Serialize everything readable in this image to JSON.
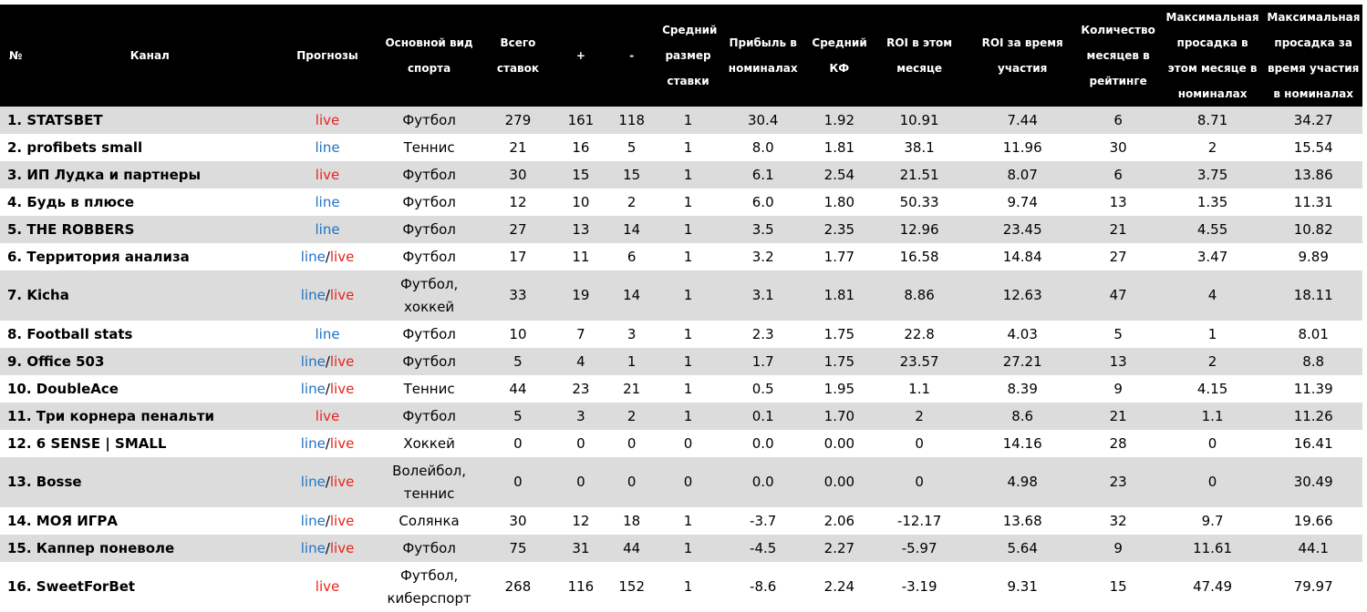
{
  "colors": {
    "header_bg": "#000000",
    "header_text": "#ffffff",
    "row_odd": "#dcdcdc",
    "row_even": "#ffffff",
    "live": "#e8231b",
    "line": "#1f72c4",
    "profit_pos": "#1e8a22",
    "profit_neg": "#e8231b"
  },
  "headers": {
    "num": "№",
    "channel": "Канал",
    "forecasts": "Прогнозы",
    "sport": "Основной вид спорта",
    "total": "Всего ставок",
    "plus": "+",
    "minus": "-",
    "avg_stake": "Средний размер ставки",
    "profit": "Прибыль в номиналах",
    "avg_kf": "Средний КФ",
    "roi_month": "ROI в этом месяце",
    "roi_all": "ROI за время участия",
    "months": "Количество месяцев в рейтинге",
    "dd_month": "Максимальная просадка в этом месяце в номиналах",
    "dd_all": "Максимальная просадка за время участия в номиналах"
  },
  "rows": [
    {
      "name": "1.  STATSBET",
      "forecast": "live",
      "sport": "Футбол",
      "total": "279",
      "plus": "161",
      "minus": "118",
      "stake": "1",
      "profit": "30.4",
      "kf": "1.92",
      "roi_m": "10.91",
      "roi_a": "7.44",
      "months": "6",
      "dd_m": "8.71",
      "dd_a": "34.27"
    },
    {
      "name": "2.  profibets small",
      "forecast": "line",
      "sport": "Теннис",
      "total": "21",
      "plus": "16",
      "minus": "5",
      "stake": "1",
      "profit": "8.0",
      "kf": "1.81",
      "roi_m": "38.1",
      "roi_a": "11.96",
      "months": "30",
      "dd_m": "2",
      "dd_a": "15.54"
    },
    {
      "name": "3.  ИП Лудка и партнеры",
      "forecast": "live",
      "sport": "Футбол",
      "total": "30",
      "plus": "15",
      "minus": "15",
      "stake": "1",
      "profit": "6.1",
      "kf": "2.54",
      "roi_m": "21.51",
      "roi_a": "8.07",
      "months": "6",
      "dd_m": "3.75",
      "dd_a": "13.86"
    },
    {
      "name": "4.  Будь в плюсе",
      "forecast": "line",
      "sport": "Футбол",
      "total": "12",
      "plus": "10",
      "minus": "2",
      "stake": "1",
      "profit": "6.0",
      "kf": "1.80",
      "roi_m": "50.33",
      "roi_a": "9.74",
      "months": "13",
      "dd_m": "1.35",
      "dd_a": "11.31"
    },
    {
      "name": "5.  THE ROBBERS",
      "forecast": "line",
      "sport": "Футбол",
      "total": "27",
      "plus": "13",
      "minus": "14",
      "stake": "1",
      "profit": "3.5",
      "kf": "2.35",
      "roi_m": "12.96",
      "roi_a": "23.45",
      "months": "21",
      "dd_m": "4.55",
      "dd_a": "10.82"
    },
    {
      "name": "6.  Территория анализа",
      "forecast": "line/live",
      "sport": "Футбол",
      "total": "17",
      "plus": "11",
      "minus": "6",
      "stake": "1",
      "profit": "3.2",
      "kf": "1.77",
      "roi_m": "16.58",
      "roi_a": "14.84",
      "months": "27",
      "dd_m": "3.47",
      "dd_a": "9.89"
    },
    {
      "name": "7.  Kicha",
      "forecast": "line/live",
      "sport": "Футбол, хоккей",
      "total": "33",
      "plus": "19",
      "minus": "14",
      "stake": "1",
      "profit": "3.1",
      "kf": "1.81",
      "roi_m": "8.86",
      "roi_a": "12.63",
      "months": "47",
      "dd_m": "4",
      "dd_a": "18.11",
      "tall": true
    },
    {
      "name": "8.  Football stats",
      "forecast": "line",
      "sport": "Футбол",
      "total": "10",
      "plus": "7",
      "minus": "3",
      "stake": "1",
      "profit": "2.3",
      "kf": "1.75",
      "roi_m": "22.8",
      "roi_a": "4.03",
      "months": "5",
      "dd_m": "1",
      "dd_a": "8.01"
    },
    {
      "name": "9.  Office 503",
      "forecast": "line/live",
      "sport": "Футбол",
      "total": "5",
      "plus": "4",
      "minus": "1",
      "stake": "1",
      "profit": "1.7",
      "kf": "1.75",
      "roi_m": "23.57",
      "roi_a": "27.21",
      "months": "13",
      "dd_m": "2",
      "dd_a": "8.8"
    },
    {
      "name": "10. DoubleAce",
      "forecast": "line/live",
      "sport": "Теннис",
      "total": "44",
      "plus": "23",
      "minus": "21",
      "stake": "1",
      "profit": "0.5",
      "kf": "1.95",
      "roi_m": "1.1",
      "roi_a": "8.39",
      "months": "9",
      "dd_m": "4.15",
      "dd_a": "11.39"
    },
    {
      "name": "11. Три корнера пенальти",
      "forecast": "live",
      "sport": "Футбол",
      "total": "5",
      "plus": "3",
      "minus": "2",
      "stake": "1",
      "profit": "0.1",
      "kf": "1.70",
      "roi_m": "2",
      "roi_a": "8.6",
      "months": "21",
      "dd_m": "1.1",
      "dd_a": "11.26"
    },
    {
      "name": "12. 6 SENSE | SMALL",
      "forecast": "line/live",
      "sport": "Хоккей",
      "total": "0",
      "plus": "0",
      "minus": "0",
      "stake": "0",
      "profit": "0.0",
      "kf": "0.00",
      "roi_m": "0",
      "roi_a": "14.16",
      "months": "28",
      "dd_m": "0",
      "dd_a": "16.41"
    },
    {
      "name": "13. Bosse",
      "forecast": "line/live",
      "sport": "Волейбол, теннис",
      "total": "0",
      "plus": "0",
      "minus": "0",
      "stake": "0",
      "profit": "0.0",
      "kf": "0.00",
      "roi_m": "0",
      "roi_a": "4.98",
      "months": "23",
      "dd_m": "0",
      "dd_a": "30.49",
      "tall": true
    },
    {
      "name": "14. МОЯ ИГРА",
      "forecast": "line/live",
      "sport": "Солянка",
      "total": "30",
      "plus": "12",
      "minus": "18",
      "stake": "1",
      "profit": "-3.7",
      "kf": "2.06",
      "roi_m": "-12.17",
      "roi_a": "13.68",
      "months": "32",
      "dd_m": "9.7",
      "dd_a": "19.66"
    },
    {
      "name": "15. Каппер поневоле",
      "forecast": "line/live",
      "sport": "Футбол",
      "total": "75",
      "plus": "31",
      "minus": "44",
      "stake": "1",
      "profit": "-4.5",
      "kf": "2.27",
      "roi_m": "-5.97",
      "roi_a": "5.64",
      "months": "9",
      "dd_m": "11.61",
      "dd_a": "44.1"
    },
    {
      "name": "16. SweetForBet",
      "forecast": "live",
      "sport": "Футбол, киберспорт",
      "total": "268",
      "plus": "116",
      "minus": "152",
      "stake": "1",
      "profit": "-8.6",
      "kf": "2.24",
      "roi_m": "-3.19",
      "roi_a": "9.31",
      "months": "15",
      "dd_m": "47.49",
      "dd_a": "79.97",
      "tall": true
    }
  ]
}
